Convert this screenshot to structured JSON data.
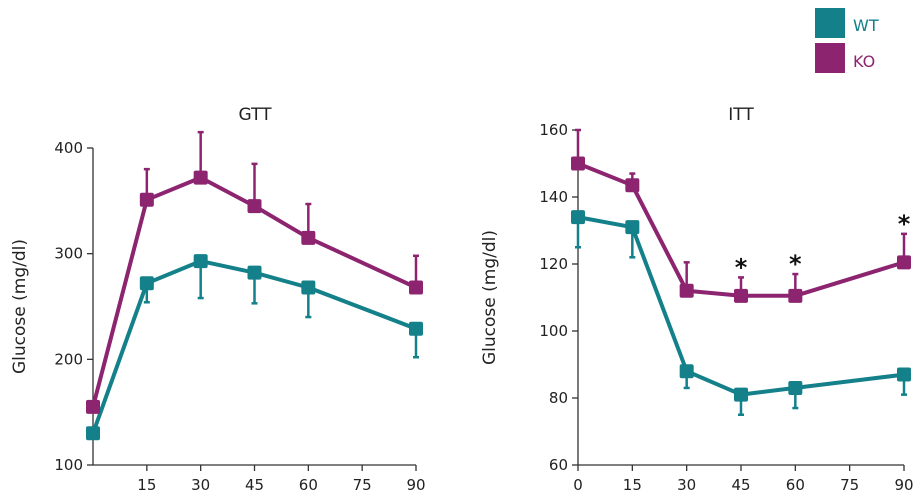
{
  "legend": {
    "items": [
      {
        "label": "WT",
        "color": "#13808a"
      },
      {
        "label": "KO",
        "color": "#8c2470"
      }
    ]
  },
  "chart_data": [
    {
      "type": "line",
      "title": "GTT",
      "xlabel": "",
      "ylabel": "Glucose (mg/dl)",
      "xlim": [
        0,
        90
      ],
      "ylim": [
        100,
        400
      ],
      "x_ticks": [
        15,
        30,
        45,
        60,
        75,
        90
      ],
      "y_ticks": [
        100,
        200,
        300,
        400
      ],
      "x": [
        0,
        15,
        30,
        45,
        60,
        90
      ],
      "series": [
        {
          "name": "WT",
          "color": "#13808a",
          "values": [
            130,
            272,
            293,
            282,
            268,
            229
          ],
          "error_lower": [
            0,
            18,
            35,
            29,
            28,
            27
          ],
          "error_upper": [
            0,
            0,
            0,
            0,
            0,
            0
          ]
        },
        {
          "name": "KO",
          "color": "#8c2470",
          "values": [
            155,
            351,
            372,
            345,
            315,
            268
          ],
          "error_lower": [
            0,
            0,
            0,
            0,
            0,
            0
          ],
          "error_upper": [
            0,
            29,
            43,
            40,
            32,
            30
          ]
        }
      ],
      "annotations": []
    },
    {
      "type": "line",
      "title": "ITT",
      "xlabel": "",
      "ylabel": "Glucose (mg/dl)",
      "xlim": [
        0,
        90
      ],
      "ylim": [
        60,
        160
      ],
      "x_ticks": [
        0,
        15,
        30,
        45,
        60,
        75,
        90
      ],
      "y_ticks": [
        60,
        80,
        100,
        120,
        140,
        160
      ],
      "x": [
        0,
        15,
        30,
        45,
        60,
        90
      ],
      "series": [
        {
          "name": "WT",
          "color": "#13808a",
          "values": [
            134,
            131,
            88,
            81,
            83,
            87
          ],
          "error_lower": [
            9,
            9,
            5,
            6,
            6,
            6
          ],
          "error_upper": [
            0,
            0,
            0,
            0,
            0,
            0
          ]
        },
        {
          "name": "KO",
          "color": "#8c2470",
          "values": [
            150,
            143.5,
            112,
            110.5,
            110.5,
            120.5
          ],
          "error_lower": [
            0,
            0,
            0,
            0,
            0,
            0
          ],
          "error_upper": [
            10,
            3.5,
            8.5,
            5.5,
            6.5,
            8.5
          ]
        }
      ],
      "annotations": [
        {
          "x": 45,
          "y": 116,
          "label": "*"
        },
        {
          "x": 60,
          "y": 117,
          "label": "*"
        },
        {
          "x": 90,
          "y": 129,
          "label": "*"
        }
      ]
    }
  ]
}
